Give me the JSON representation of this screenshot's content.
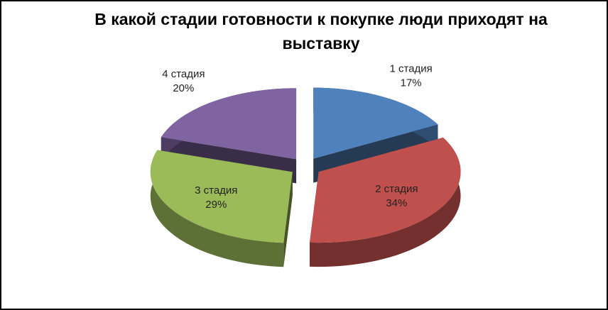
{
  "chart_data": {
    "type": "pie3d",
    "title": "В какой стадии готовности к покупке люди приходят на выставку",
    "categories": [
      "1 стадия",
      "2 стадия",
      "3 стадия",
      "4 стадия"
    ],
    "values": [
      17,
      34,
      29,
      20
    ],
    "value_labels": [
      "17%",
      "34%",
      "29%",
      "20%"
    ],
    "colors": [
      "#4f81bd",
      "#c0504d",
      "#9bbb59",
      "#8064a2"
    ]
  }
}
